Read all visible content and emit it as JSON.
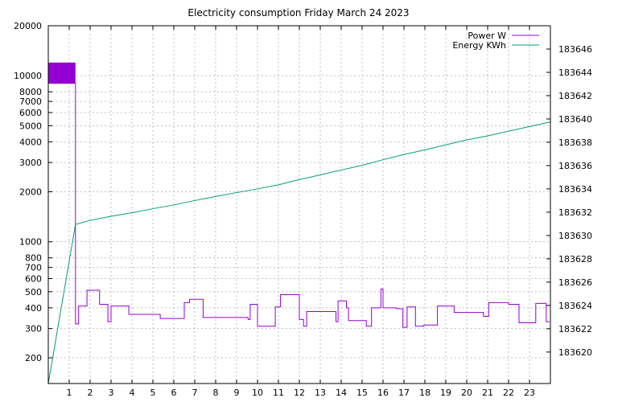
{
  "chart_data": {
    "type": "line",
    "title": "Electricity consumption Friday March 24 2023",
    "xlabel": "",
    "ylabel": "",
    "y2label": "",
    "grid": true,
    "legend_position": "top-right",
    "xlim": [
      0,
      24
    ],
    "x_ticks": [
      1,
      2,
      3,
      4,
      5,
      6,
      7,
      8,
      9,
      10,
      11,
      12,
      13,
      14,
      15,
      16,
      17,
      18,
      19,
      20,
      21,
      22,
      23
    ],
    "y_scale": "log",
    "ylim": [
      140,
      20000
    ],
    "y_ticks": [
      200,
      300,
      400,
      500,
      600,
      700,
      800,
      1000,
      2000,
      3000,
      4000,
      5000,
      6000,
      7000,
      8000,
      10000,
      20000
    ],
    "y2_scale": "linear",
    "y2lim": [
      183617.3,
      183648
    ],
    "y2_ticks": [
      183620,
      183622,
      183624,
      183626,
      183628,
      183630,
      183632,
      183634,
      183636,
      183638,
      183640,
      183642,
      183644,
      183646
    ],
    "colors": {
      "power": "#9400d3",
      "energy": "#009e73"
    },
    "series": [
      {
        "name": "Power W",
        "axis": "y",
        "step": true,
        "x": [
          0,
          1.3,
          1.3,
          1.45,
          1.45,
          1.85,
          1.85,
          2.45,
          2.45,
          2.85,
          2.85,
          3.0,
          3.0,
          3.85,
          3.85,
          5.35,
          5.35,
          6.5,
          6.5,
          6.75,
          6.75,
          7.4,
          7.4,
          9.55,
          9.55,
          9.65,
          9.65,
          10.0,
          10.0,
          10.85,
          10.85,
          11.1,
          11.1,
          12.0,
          12.0,
          12.2,
          12.2,
          12.35,
          12.35,
          13.75,
          13.75,
          13.85,
          13.85,
          14.25,
          14.25,
          14.35,
          14.35,
          15.2,
          15.2,
          15.45,
          15.45,
          15.9,
          15.9,
          16.0,
          16.0,
          16.65,
          16.65,
          16.95,
          16.95,
          17.15,
          17.15,
          17.55,
          17.55,
          17.95,
          17.95,
          18.6,
          18.6,
          19.4,
          19.4,
          20.8,
          20.8,
          21.05,
          21.05,
          22.0,
          22.0,
          22.5,
          22.5,
          23.3,
          23.3,
          23.8,
          23.8,
          23.95
        ],
        "values": [
          9000,
          9000,
          320,
          320,
          410,
          410,
          510,
          510,
          420,
          420,
          330,
          330,
          410,
          410,
          365,
          365,
          345,
          345,
          430,
          430,
          450,
          450,
          350,
          350,
          340,
          340,
          420,
          420,
          310,
          310,
          405,
          405,
          480,
          480,
          340,
          340,
          310,
          310,
          380,
          380,
          330,
          330,
          440,
          440,
          400,
          400,
          335,
          335,
          310,
          310,
          400,
          400,
          520,
          520,
          400,
          400,
          395,
          395,
          305,
          305,
          405,
          405,
          310,
          310,
          315,
          315,
          410,
          410,
          375,
          375,
          355,
          355,
          430,
          430,
          420,
          420,
          325,
          325,
          425,
          425,
          330,
          330
        ]
      },
      {
        "name": "Energy KWh",
        "axis": "y2",
        "step": false,
        "x": [
          0,
          1.3,
          2,
          3,
          4,
          5,
          6,
          7,
          8,
          9,
          10,
          11,
          12,
          13,
          14,
          15,
          16,
          17,
          18,
          19,
          20,
          21,
          22,
          23,
          24
        ],
        "values": [
          183617.3,
          183630.95,
          183631.3,
          183631.65,
          183631.95,
          183632.3,
          183632.62,
          183633.0,
          183633.35,
          183633.68,
          183634.0,
          183634.35,
          183634.8,
          183635.2,
          183635.62,
          183636.02,
          183636.5,
          183636.95,
          183637.35,
          183637.78,
          183638.2,
          183638.55,
          183638.95,
          183639.35,
          183639.75
        ]
      }
    ]
  }
}
